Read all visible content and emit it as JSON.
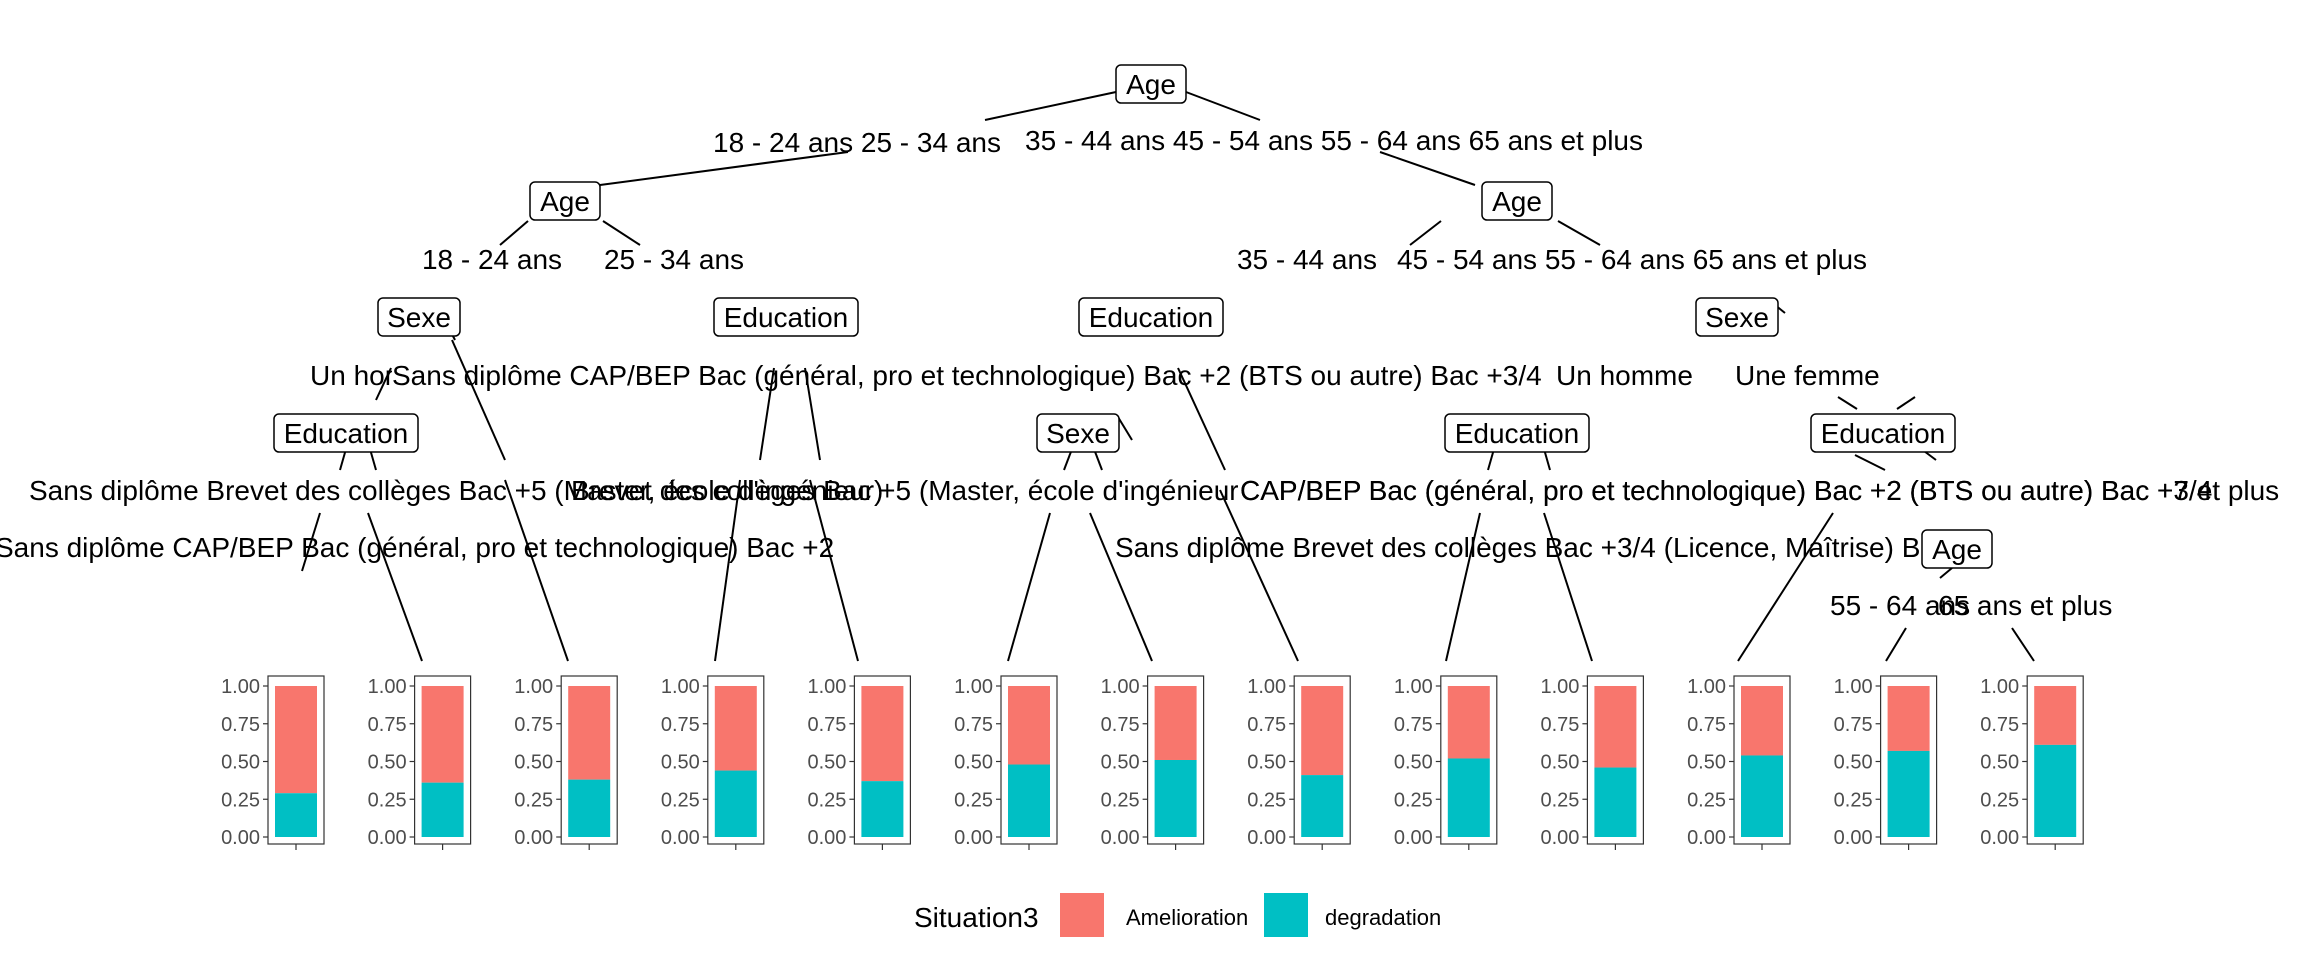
{
  "tree": {
    "nodes": [
      {
        "id": "n1",
        "label": "Age"
      },
      {
        "id": "n2",
        "label": "Age"
      },
      {
        "id": "n3",
        "label": "Age"
      },
      {
        "id": "n4",
        "label": "Sexe"
      },
      {
        "id": "n5",
        "label": "Education"
      },
      {
        "id": "n6",
        "label": "Education"
      },
      {
        "id": "n7",
        "label": "Sexe"
      },
      {
        "id": "n8",
        "label": "Education"
      },
      {
        "id": "n9",
        "label": "Sexe"
      },
      {
        "id": "n10",
        "label": "Education"
      },
      {
        "id": "n11",
        "label": "Education"
      },
      {
        "id": "n12",
        "label": "Education"
      },
      {
        "id": "n13",
        "label": "Age"
      }
    ],
    "edge_labels": [
      {
        "id": "e1",
        "text": "18 - 24 ans 25 - 34 ans"
      },
      {
        "id": "e2",
        "text": "35 - 44 ans 45 - 54 ans 55 - 64 ans 65 ans et plus"
      },
      {
        "id": "e3",
        "text": "18 - 24 ans"
      },
      {
        "id": "e4",
        "text": "25 - 34 ans"
      },
      {
        "id": "e5",
        "text": "35 - 44 ans"
      },
      {
        "id": "e6",
        "text": "45 - 54 ans 55 - 64 ans 65 ans et plus"
      },
      {
        "id": "e7",
        "text": "Un homme"
      },
      {
        "id": "e8",
        "text": "Sans diplôme CAP/BEP Bac (général, pro et technologique) Bac +2 (BTS ou autre) Bac +3/4"
      },
      {
        "id": "e9",
        "text": "Un homme"
      },
      {
        "id": "e10",
        "text": "Une femme"
      },
      {
        "id": "e11",
        "text": "Sans diplôme Brevet des collèges Bac +5 (Master, école d'ingénieur)"
      },
      {
        "id": "e12",
        "text": "Brevet des collèges Bac +5 (Master, école d'ingénieur)"
      },
      {
        "id": "e13",
        "text": "CAP/BEP Bac (général, pro et technologique) Bac +2 (BTS ou autre) Bac +7 et plus"
      },
      {
        "id": "e14",
        "text": "CAP/BEP Bac (général, pro et technologique) Bac +2 (BTS ou autre) Bac +3/4"
      },
      {
        "id": "e15",
        "text": "Sans diplôme CAP/BEP Bac (général, pro et technologique) Bac +2"
      },
      {
        "id": "e16",
        "text": "Sans diplôme Brevet des collèges Bac +3/4 (Licence, Maîtrise) Bac +5 (Master, école d'ingénieur)"
      },
      {
        "id": "e17",
        "text": "55 - 64 ans"
      },
      {
        "id": "e18",
        "text": "65 ans et plus"
      }
    ]
  },
  "chart_data": {
    "type": "bar",
    "series_names": [
      "Amelioration",
      "degradation"
    ],
    "colors": {
      "Amelioration": "#F8766D",
      "degradation": "#00BFC4"
    },
    "ylim": [
      0,
      1
    ],
    "yticks": [
      "0.00",
      "0.25",
      "0.50",
      "0.75",
      "1.00"
    ],
    "leaf_degradation": [
      0.29,
      0.36,
      0.38,
      0.44,
      0.37,
      0.48,
      0.51,
      0.41,
      0.52,
      0.46,
      0.54,
      0.57,
      0.61
    ]
  },
  "legend": {
    "title": "Situation3",
    "items": [
      {
        "label": "Amelioration",
        "color": "#F8766D"
      },
      {
        "label": "degradation",
        "color": "#00BFC4"
      }
    ]
  }
}
